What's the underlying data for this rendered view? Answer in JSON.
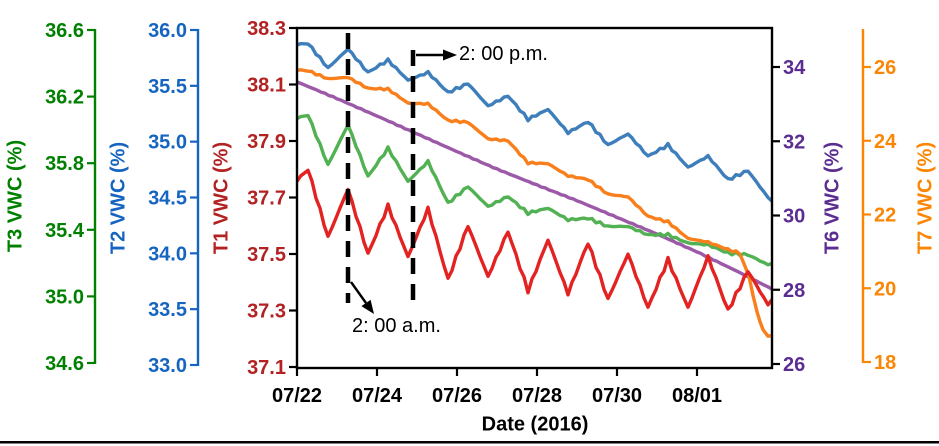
{
  "figure": {
    "background": "#ffffff",
    "frame_color": "#000000"
  },
  "x_axis": {
    "title": "Date (2016)",
    "tick_labels": [
      "07/22",
      "07/24",
      "07/26",
      "07/28",
      "07/30",
      "08/01"
    ],
    "color": "#000000"
  },
  "axes": [
    {
      "id": "T3",
      "title": "T3 VWC (%)",
      "side": "left",
      "color": "#008000",
      "ticks": [
        "36.6",
        "36.2",
        "35.8",
        "35.4",
        "35.0",
        "34.6"
      ]
    },
    {
      "id": "T2",
      "title": "T2 VWC (%)",
      "side": "left",
      "color": "#1565C0",
      "ticks": [
        "36.0",
        "35.5",
        "35.0",
        "34.5",
        "34.0",
        "33.5",
        "33.0"
      ]
    },
    {
      "id": "T1",
      "title": "T1 VWC (%)",
      "side": "left",
      "color": "#B22222",
      "ticks": [
        "38.3",
        "38.1",
        "37.9",
        "37.7",
        "37.5",
        "37.3",
        "37.1"
      ]
    },
    {
      "id": "T6",
      "title": "T6 VWC (%)",
      "side": "right",
      "color": "#5C2D91",
      "ticks": [
        "34",
        "32",
        "30",
        "28",
        "26"
      ]
    },
    {
      "id": "T7",
      "title": "T7 VWC (%)",
      "side": "right",
      "color": "#FB8604",
      "ticks": [
        "26",
        "24",
        "22",
        "20",
        "18"
      ]
    }
  ],
  "annotations": {
    "pm": {
      "text": "2: 00 p.m.",
      "marks": "dashed vertical line at 2:00 p.m."
    },
    "am": {
      "text": "2: 00 a.m.",
      "marks": "dashed vertical line at 2:00 a.m."
    }
  },
  "chart_data": {
    "type": "line",
    "title": "",
    "xlabel": "Date (2016)",
    "x_unit": "days since 2016-07-22 00:00",
    "x_range": [
      0,
      11.875
    ],
    "x_tick_labels": [
      "07/22",
      "07/24",
      "07/26",
      "07/28",
      "07/30",
      "08/01"
    ],
    "grid": false,
    "legend": "none (per-axis colored labels)",
    "series": [
      {
        "name": "T6",
        "axis": "T6",
        "color": "#9C59A8",
        "ylabel": "T6 VWC (%)",
        "points": [
          [
            0,
            33.6
          ],
          [
            1,
            33.15
          ],
          [
            2,
            32.68
          ],
          [
            3,
            32.2
          ],
          [
            4,
            31.72
          ],
          [
            5,
            31.25
          ],
          [
            6,
            30.82
          ],
          [
            7,
            30.4
          ],
          [
            8,
            29.95
          ],
          [
            9,
            29.5
          ],
          [
            10,
            29.02
          ],
          [
            11,
            28.5
          ],
          [
            11.875,
            28.02
          ]
        ]
      },
      {
        "name": "T3",
        "axis": "T3",
        "color": "#52B152",
        "ylabel": "T3 VWC (%)",
        "points": [
          [
            0,
            36.07
          ],
          [
            0.275,
            36.09
          ],
          [
            0.775,
            35.79
          ],
          [
            1.275,
            36.03
          ],
          [
            1.775,
            35.72
          ],
          [
            2.275,
            35.89
          ],
          [
            2.775,
            35.69
          ],
          [
            3.275,
            35.81
          ],
          [
            3.775,
            35.56
          ],
          [
            4.275,
            35.66
          ],
          [
            4.775,
            35.54
          ],
          [
            5.275,
            35.6
          ],
          [
            5.775,
            35.5
          ],
          [
            6.275,
            35.53
          ],
          [
            6.775,
            35.46
          ],
          [
            7.275,
            35.47
          ],
          [
            7.775,
            35.42
          ],
          [
            8.275,
            35.42
          ],
          [
            8.775,
            35.37
          ],
          [
            9.275,
            35.37
          ],
          [
            9.775,
            35.32
          ],
          [
            10.275,
            35.31
          ],
          [
            10.775,
            35.26
          ],
          [
            11.275,
            35.25
          ],
          [
            11.775,
            35.19
          ],
          [
            11.875,
            35.2
          ]
        ]
      },
      {
        "name": "T2",
        "axis": "T2",
        "color": "#3E7EBA",
        "ylabel": "T2 VWC (%)",
        "points": [
          [
            0,
            35.87
          ],
          [
            0.275,
            35.88
          ],
          [
            0.775,
            35.66
          ],
          [
            1.275,
            35.83
          ],
          [
            1.775,
            35.62
          ],
          [
            2.275,
            35.73
          ],
          [
            2.775,
            35.55
          ],
          [
            3.275,
            35.62
          ],
          [
            3.775,
            35.44
          ],
          [
            4.275,
            35.52
          ],
          [
            4.775,
            35.32
          ],
          [
            5.275,
            35.41
          ],
          [
            5.775,
            35.2
          ],
          [
            6.275,
            35.29
          ],
          [
            6.775,
            35.08
          ],
          [
            7.275,
            35.18
          ],
          [
            7.775,
            34.97
          ],
          [
            8.275,
            35.07
          ],
          [
            8.775,
            34.87
          ],
          [
            9.275,
            34.97
          ],
          [
            9.775,
            34.77
          ],
          [
            10.275,
            34.87
          ],
          [
            10.775,
            34.66
          ],
          [
            11.275,
            34.74
          ],
          [
            11.775,
            34.5
          ],
          [
            11.875,
            34.47
          ]
        ]
      },
      {
        "name": "T7",
        "axis": "T7",
        "color": "#F87F1B",
        "ylabel": "T7 VWC (%)",
        "points": [
          [
            0,
            25.92
          ],
          [
            0.275,
            25.9
          ],
          [
            0.775,
            25.68
          ],
          [
            1.275,
            25.72
          ],
          [
            1.775,
            25.42
          ],
          [
            2.275,
            25.4
          ],
          [
            2.775,
            25.02
          ],
          [
            3.275,
            25.0
          ],
          [
            3.775,
            24.55
          ],
          [
            4.275,
            24.5
          ],
          [
            4.775,
            24.05
          ],
          [
            5.275,
            24.0
          ],
          [
            5.775,
            23.4
          ],
          [
            6.275,
            23.38
          ],
          [
            6.775,
            23.05
          ],
          [
            7.275,
            22.95
          ],
          [
            7.775,
            22.55
          ],
          [
            8.275,
            22.48
          ],
          [
            8.775,
            21.95
          ],
          [
            9.275,
            21.8
          ],
          [
            9.775,
            21.35
          ],
          [
            10.275,
            21.25
          ],
          [
            10.775,
            21.05
          ],
          [
            11.075,
            20.95
          ],
          [
            11.3,
            20.3
          ],
          [
            11.5,
            19.35
          ],
          [
            11.65,
            18.85
          ],
          [
            11.775,
            18.7
          ],
          [
            11.875,
            18.72
          ]
        ]
      },
      {
        "name": "T1",
        "axis": "T1",
        "color": "#E32222",
        "ylabel": "T1 VWC (%)",
        "points": [
          [
            0,
            37.76
          ],
          [
            0.275,
            37.8
          ],
          [
            0.775,
            37.56
          ],
          [
            1.275,
            37.73
          ],
          [
            1.775,
            37.5
          ],
          [
            2.275,
            37.67
          ],
          [
            2.775,
            37.49
          ],
          [
            3.275,
            37.66
          ],
          [
            3.775,
            37.41
          ],
          [
            4.275,
            37.6
          ],
          [
            4.775,
            37.42
          ],
          [
            5.275,
            37.58
          ],
          [
            5.775,
            37.37
          ],
          [
            6.275,
            37.55
          ],
          [
            6.775,
            37.36
          ],
          [
            7.275,
            37.54
          ],
          [
            7.775,
            37.34
          ],
          [
            8.275,
            37.5
          ],
          [
            8.775,
            37.31
          ],
          [
            9.275,
            37.48
          ],
          [
            9.775,
            37.31
          ],
          [
            10.275,
            37.49
          ],
          [
            10.775,
            37.3
          ],
          [
            11.275,
            37.44
          ],
          [
            11.775,
            37.32
          ],
          [
            11.875,
            37.34
          ]
        ]
      }
    ]
  }
}
